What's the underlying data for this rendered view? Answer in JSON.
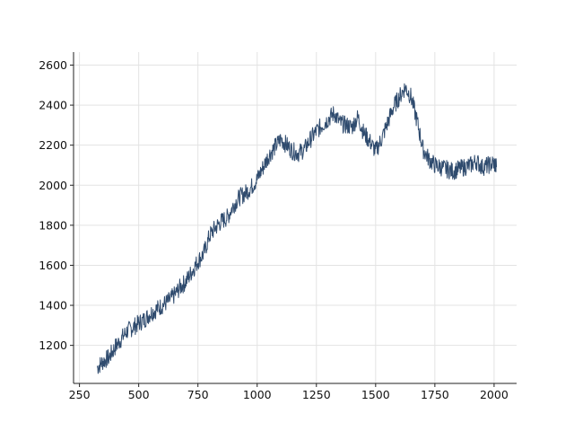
{
  "chart_data": {
    "type": "line",
    "title": "",
    "xlabel": "",
    "ylabel": "",
    "xlim": [
      225,
      2095
    ],
    "ylim": [
      1010,
      2665
    ],
    "x_ticks": [
      250,
      500,
      750,
      1000,
      1250,
      1500,
      1750,
      2000
    ],
    "y_ticks": [
      1200,
      1400,
      1600,
      1800,
      2000,
      2200,
      2400,
      2600
    ],
    "grid": true,
    "legend": "none",
    "series": [
      {
        "color": "#2f4b6e",
        "x": [
          325,
          350,
          375,
          400,
          425,
          450,
          475,
          500,
          525,
          550,
          575,
          600,
          625,
          650,
          675,
          700,
          725,
          750,
          775,
          800,
          825,
          850,
          875,
          900,
          925,
          950,
          975,
          1000,
          1025,
          1050,
          1075,
          1100,
          1125,
          1150,
          1175,
          1200,
          1225,
          1250,
          1275,
          1300,
          1325,
          1350,
          1375,
          1400,
          1425,
          1450,
          1475,
          1500,
          1525,
          1550,
          1575,
          1600,
          1625,
          1650,
          1675,
          1700,
          1725,
          1750,
          1775,
          1800,
          1825,
          1850,
          1875,
          1900,
          1925,
          1950,
          1975,
          2000,
          2010
        ],
        "y": [
          1090,
          1120,
          1140,
          1190,
          1230,
          1270,
          1290,
          1310,
          1330,
          1360,
          1380,
          1400,
          1420,
          1450,
          1490,
          1520,
          1570,
          1620,
          1660,
          1750,
          1790,
          1820,
          1840,
          1900,
          1940,
          1960,
          1990,
          2030,
          2090,
          2150,
          2190,
          2230,
          2200,
          2170,
          2160,
          2180,
          2230,
          2270,
          2300,
          2330,
          2360,
          2310,
          2300,
          2290,
          2340,
          2260,
          2220,
          2170,
          2230,
          2310,
          2390,
          2440,
          2490,
          2440,
          2320,
          2180,
          2130,
          2100,
          2090,
          2080,
          2070,
          2080,
          2090,
          2100,
          2120,
          2090,
          2100,
          2110,
          2090
        ]
      }
    ]
  }
}
